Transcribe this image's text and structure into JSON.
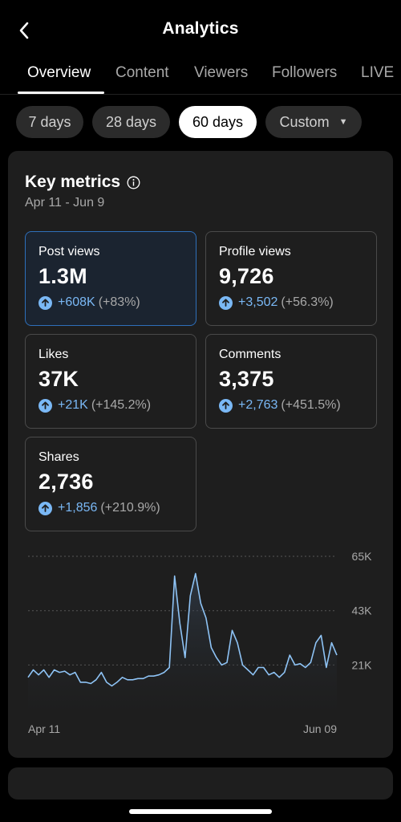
{
  "header": {
    "title": "Analytics",
    "back_icon": "chevron-left-icon"
  },
  "tabs": [
    {
      "label": "Overview",
      "active": true
    },
    {
      "label": "Content",
      "active": false
    },
    {
      "label": "Viewers",
      "active": false
    },
    {
      "label": "Followers",
      "active": false
    },
    {
      "label": "LIVE",
      "active": false
    }
  ],
  "ranges": [
    {
      "label": "7 days",
      "active": false
    },
    {
      "label": "28 days",
      "active": false
    },
    {
      "label": "60 days",
      "active": true
    },
    {
      "label": "Custom",
      "active": false,
      "caret": "▼"
    }
  ],
  "key_metrics": {
    "title": "Key metrics",
    "date_range": "Apr 11 - Jun 9",
    "items": [
      {
        "label": "Post views",
        "value": "1.3M",
        "delta": "+608K",
        "pct": "(+83%)"
      },
      {
        "label": "Profile views",
        "value": "9,726",
        "delta": "+3,502",
        "pct": "(+56.3%)"
      },
      {
        "label": "Likes",
        "value": "37K",
        "delta": "+21K",
        "pct": "(+145.2%)"
      },
      {
        "label": "Comments",
        "value": "3,375",
        "delta": "+2,763",
        "pct": "(+451.5%)"
      },
      {
        "label": "Shares",
        "value": "2,736",
        "delta": "+1,856",
        "pct": "(+210.9%)"
      }
    ]
  },
  "colors": {
    "accent": "#7ab8f5",
    "selected_border": "#2e6fba",
    "card_bg": "#1e1e1e"
  },
  "chart_data": {
    "type": "area",
    "series": [
      {
        "values": [
          16000,
          19000,
          17000,
          19000,
          16000,
          19000,
          18000,
          18500,
          17000,
          18000,
          14000,
          14000,
          13500,
          15000,
          18000,
          14000,
          12500,
          14000,
          16000,
          15000,
          15000,
          15500,
          15500,
          16500,
          16500,
          17000,
          18000,
          20000,
          57000,
          38000,
          24000,
          49000,
          58000,
          46000,
          40000,
          28000,
          24000,
          21000,
          22000,
          35000,
          30000,
          21000,
          19000,
          17000,
          20000,
          20000,
          17000,
          18000,
          16000,
          18000,
          25000,
          21000,
          21500,
          20000,
          22000,
          30000,
          33000,
          20000,
          30000,
          25000
        ]
      }
    ],
    "yticks": [
      "65K",
      "43K",
      "21K"
    ],
    "ylim": [
      0,
      65000
    ],
    "x_start_label": "Apr 11",
    "x_end_label": "Jun 09",
    "grid": "dashed"
  }
}
